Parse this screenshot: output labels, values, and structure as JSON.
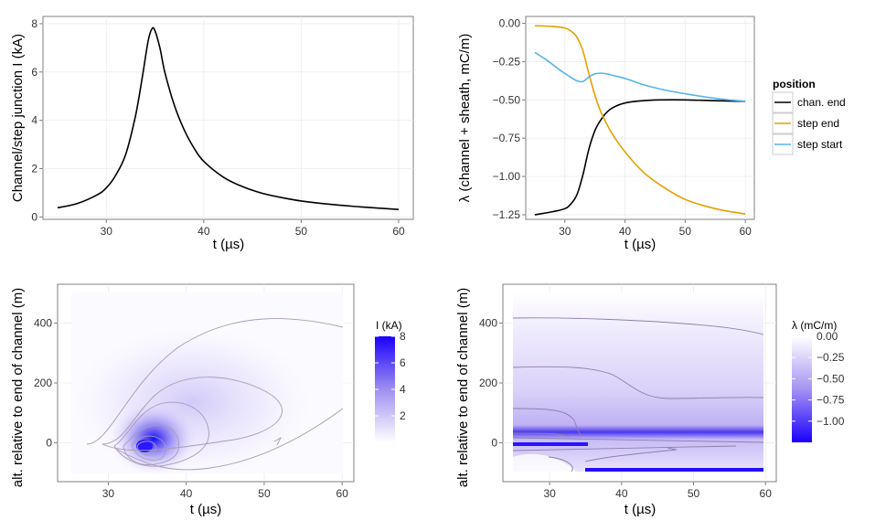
{
  "chart_data": [
    {
      "id": "panel_current",
      "type": "line",
      "xlabel": "t (µs)",
      "ylabel": "Channel/step junction I (kA)",
      "xlim": [
        23.5,
        61.5
      ],
      "ylim": [
        -0.1,
        8.3
      ],
      "xticks": [
        30,
        40,
        50,
        60
      ],
      "yticks": [
        0,
        2,
        4,
        6,
        8
      ],
      "series": [
        {
          "name": "I",
          "color": "#000000",
          "x": [
            25,
            27,
            29,
            30,
            31,
            32,
            33,
            33.7,
            34.3,
            34.7,
            35,
            35.5,
            36,
            37,
            38,
            39,
            40,
            42,
            44,
            46,
            48,
            50,
            53,
            56,
            60
          ],
          "y": [
            0.38,
            0.55,
            0.9,
            1.2,
            1.75,
            2.6,
            4.2,
            5.8,
            7.3,
            7.8,
            7.7,
            7.0,
            6.0,
            4.6,
            3.6,
            2.85,
            2.3,
            1.65,
            1.25,
            0.98,
            0.8,
            0.66,
            0.52,
            0.42,
            0.31
          ]
        }
      ]
    },
    {
      "id": "panel_lambda",
      "type": "line",
      "xlabel": "t (µs)",
      "ylabel": "λ  (channel + sheath, mC/m)",
      "xlim": [
        23.5,
        61.5
      ],
      "ylim": [
        -1.28,
        0.045
      ],
      "xticks": [
        30,
        40,
        50,
        60
      ],
      "yticks": [
        0.0,
        -0.25,
        -0.5,
        -0.75,
        -1.0,
        -1.25
      ],
      "ytick_labels": [
        "0.00",
        "−0.25",
        "−0.50",
        "−0.75",
        "−1.00",
        "−1.25"
      ],
      "legend_title": "position",
      "legend_position": "right",
      "series": [
        {
          "name": "chan. end",
          "color": "#000000",
          "x": [
            25,
            28,
            30,
            31,
            32,
            33,
            34,
            35,
            36,
            37,
            38,
            40,
            43,
            46,
            50,
            55,
            60
          ],
          "y": [
            -1.25,
            -1.23,
            -1.21,
            -1.18,
            -1.12,
            -0.99,
            -0.82,
            -0.7,
            -0.63,
            -0.58,
            -0.55,
            -0.52,
            -0.505,
            -0.5,
            -0.5,
            -0.505,
            -0.51
          ]
        },
        {
          "name": "step end",
          "color": "#E69F00",
          "x": [
            25,
            28,
            30,
            31,
            32,
            33,
            34,
            35,
            36,
            37,
            38,
            40,
            43,
            46,
            50,
            55,
            60
          ],
          "y": [
            -0.015,
            -0.02,
            -0.03,
            -0.05,
            -0.09,
            -0.18,
            -0.33,
            -0.47,
            -0.58,
            -0.66,
            -0.73,
            -0.84,
            -0.97,
            -1.06,
            -1.15,
            -1.21,
            -1.245
          ]
        },
        {
          "name": "step start",
          "color": "#56B4E9",
          "x": [
            25,
            27,
            29,
            30.5,
            32,
            33,
            34,
            35,
            36,
            37,
            38,
            40,
            43,
            46,
            50,
            55,
            60
          ],
          "y": [
            -0.19,
            -0.24,
            -0.3,
            -0.34,
            -0.375,
            -0.38,
            -0.35,
            -0.33,
            -0.325,
            -0.33,
            -0.34,
            -0.36,
            -0.4,
            -0.43,
            -0.46,
            -0.49,
            -0.51
          ]
        }
      ]
    },
    {
      "id": "panel_current_map",
      "type": "heatmap",
      "xlabel": "t (µs)",
      "ylabel": "alt. relative to end of channel (m)",
      "xlim": [
        23.5,
        61.5
      ],
      "ylim": [
        -130,
        530
      ],
      "xticks": [
        30,
        40,
        50,
        60
      ],
      "yticks": [
        0,
        200,
        400
      ],
      "color_title": "I (kA)",
      "color_range": [
        0,
        8
      ],
      "color_ticks": [
        2,
        4,
        6,
        8
      ],
      "color_low": "#FFFFFF",
      "color_high": "#0000FF",
      "peak": {
        "t": 34.5,
        "z": -10,
        "value": 8
      }
    },
    {
      "id": "panel_lambda_map",
      "type": "heatmap",
      "xlabel": "t (µs)",
      "ylabel": "alt. relative to end of channel (m)",
      "xlim": [
        23.5,
        61.5
      ],
      "ylim": [
        -130,
        530
      ],
      "xticks": [
        30,
        40,
        50,
        60
      ],
      "yticks": [
        0,
        200,
        400
      ],
      "color_title": "λ (mC/m)",
      "color_range": [
        -1.25,
        0.0
      ],
      "color_ticks": [
        0.0,
        -0.25,
        -0.5,
        -0.75,
        -1.0
      ],
      "color_tick_labels": [
        "0.00",
        "−0.25",
        "−0.50",
        "−0.75",
        "−1.00"
      ],
      "color_low": "#0000FF",
      "color_high": "#FFFFFF"
    }
  ]
}
